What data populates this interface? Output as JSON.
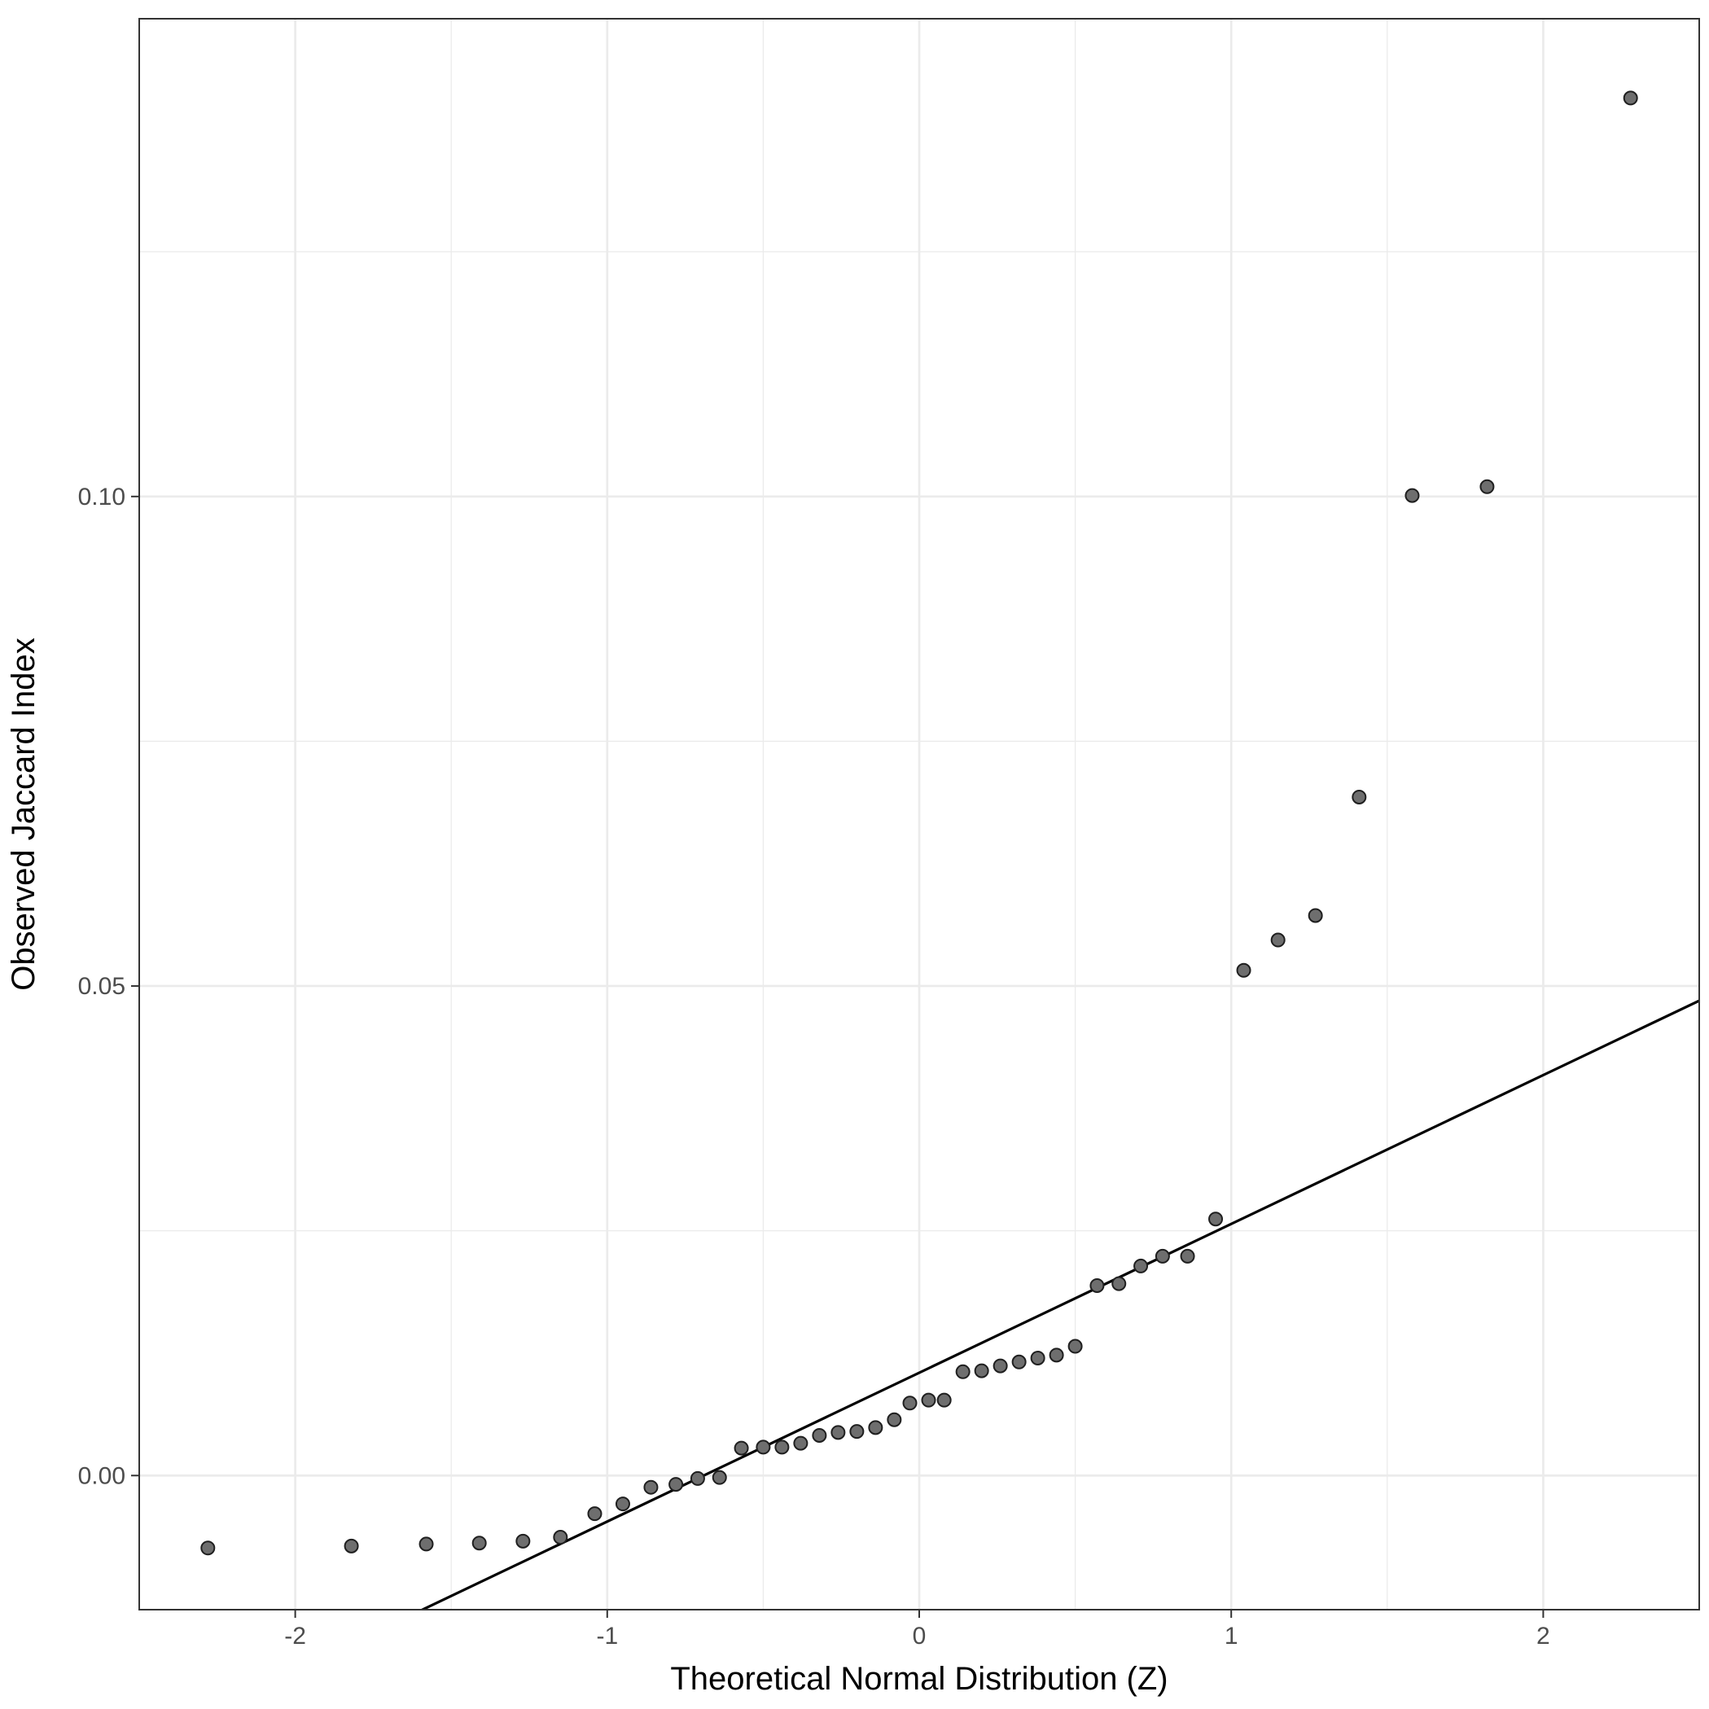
{
  "chart_data": {
    "type": "scatter",
    "title": "",
    "xlabel": "Theoretical Normal Distribution (Z)",
    "ylabel": "Observed Jaccard Index",
    "xlim": [
      -2.5,
      2.5
    ],
    "ylim": [
      -0.0137,
      0.1488
    ],
    "x_major_ticks": [
      -2,
      -1,
      0,
      1,
      2
    ],
    "x_tick_labels": [
      "-2",
      "-1",
      "0",
      "1",
      "2"
    ],
    "x_minor_ticks": [
      -1.5,
      -0.5,
      0.5,
      1.5
    ],
    "y_major_ticks": [
      0.0,
      0.05,
      0.1
    ],
    "y_tick_labels": [
      "0.00",
      "0.05",
      "0.10"
    ],
    "y_minor_ticks": [
      0.025,
      0.075,
      0.125
    ],
    "grid": true,
    "theme": "bw",
    "point_color": "#6e6e6e",
    "point_stroke": "#1f1f1f",
    "reference_line": {
      "slope": 0.0152,
      "intercept": 0.0105,
      "color": "#000000"
    },
    "points": [
      {
        "x": -2.28,
        "y": -0.0074
      },
      {
        "x": -1.82,
        "y": -0.0072
      },
      {
        "x": -1.58,
        "y": -0.007
      },
      {
        "x": -1.41,
        "y": -0.0069
      },
      {
        "x": -1.27,
        "y": -0.0067
      },
      {
        "x": -1.15,
        "y": -0.0063
      },
      {
        "x": -1.04,
        "y": -0.0039
      },
      {
        "x": -0.95,
        "y": -0.0029
      },
      {
        "x": -0.86,
        "y": -0.0012
      },
      {
        "x": -0.78,
        "y": -0.0009
      },
      {
        "x": -0.71,
        "y": -0.0003
      },
      {
        "x": -0.64,
        "y": -0.0002
      },
      {
        "x": -0.57,
        "y": 0.0028
      },
      {
        "x": -0.5,
        "y": 0.0029
      },
      {
        "x": -0.44,
        "y": 0.0029
      },
      {
        "x": -0.38,
        "y": 0.0033
      },
      {
        "x": -0.32,
        "y": 0.0041
      },
      {
        "x": -0.26,
        "y": 0.0044
      },
      {
        "x": -0.2,
        "y": 0.0045
      },
      {
        "x": -0.14,
        "y": 0.0049
      },
      {
        "x": -0.08,
        "y": 0.0057
      },
      {
        "x": -0.03,
        "y": 0.0074
      },
      {
        "x": 0.03,
        "y": 0.0077
      },
      {
        "x": 0.08,
        "y": 0.0077
      },
      {
        "x": 0.14,
        "y": 0.0106
      },
      {
        "x": 0.2,
        "y": 0.0107
      },
      {
        "x": 0.26,
        "y": 0.0112
      },
      {
        "x": 0.32,
        "y": 0.0116
      },
      {
        "x": 0.38,
        "y": 0.012
      },
      {
        "x": 0.44,
        "y": 0.0123
      },
      {
        "x": 0.5,
        "y": 0.0132
      },
      {
        "x": 0.57,
        "y": 0.0194
      },
      {
        "x": 0.64,
        "y": 0.0196
      },
      {
        "x": 0.71,
        "y": 0.0214
      },
      {
        "x": 0.78,
        "y": 0.0224
      },
      {
        "x": 0.86,
        "y": 0.0224
      },
      {
        "x": 0.95,
        "y": 0.0262
      },
      {
        "x": 1.04,
        "y": 0.0516
      },
      {
        "x": 1.15,
        "y": 0.0547
      },
      {
        "x": 1.27,
        "y": 0.0572
      },
      {
        "x": 1.41,
        "y": 0.0693
      },
      {
        "x": 1.58,
        "y": 0.1001
      },
      {
        "x": 1.82,
        "y": 0.101
      },
      {
        "x": 2.28,
        "y": 0.1407
      }
    ]
  }
}
